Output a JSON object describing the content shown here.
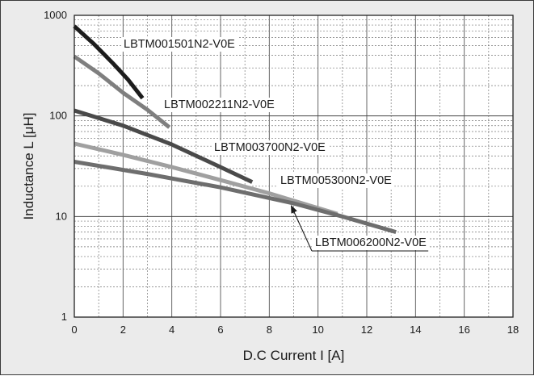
{
  "chart_data": {
    "type": "line",
    "title": "",
    "xlabel": "D.C Current I [A]",
    "ylabel": "Inductance L  [μH]",
    "xlim": [
      0,
      18
    ],
    "ylim": [
      1,
      1000
    ],
    "yscale": "log",
    "grid": true,
    "x_ticks": [
      "0",
      "2",
      "4",
      "6",
      "8",
      "10",
      "12",
      "14",
      "16",
      "18"
    ],
    "y_ticks": [
      {
        "value": 1,
        "label": "1"
      },
      {
        "value": 10,
        "label": "10"
      },
      {
        "value": 100,
        "label": "100"
      },
      {
        "value": 1000,
        "label": "1000"
      }
    ],
    "series": [
      {
        "name": "LBTM001501N2-V0E",
        "color": "#1c1c1c",
        "x": [
          0,
          0.8,
          1.6,
          2.2,
          2.8
        ],
        "y": [
          780,
          520,
          330,
          230,
          150
        ]
      },
      {
        "name": "LBTM002211N2-V0E",
        "color": "#7f7f7f",
        "x": [
          0,
          1,
          2,
          3,
          3.9
        ],
        "y": [
          390,
          265,
          170,
          115,
          77
        ]
      },
      {
        "name": "LBTM003700N2-V0E",
        "color": "#4a4a4a",
        "x": [
          0,
          2,
          4,
          6,
          7.3
        ],
        "y": [
          113,
          80,
          52,
          31,
          22
        ]
      },
      {
        "name": "LBTM005300N2-V0E",
        "color": "#a0a0a0",
        "x": [
          0,
          2,
          4,
          6,
          8,
          10.8
        ],
        "y": [
          53,
          41,
          31,
          23,
          17,
          10.6
        ]
      },
      {
        "name": "LBTM006200N2-V0E",
        "color": "#6e6e6e",
        "x": [
          0,
          3,
          6,
          9,
          11,
          13.2
        ],
        "y": [
          35,
          26.5,
          19.5,
          13.5,
          10,
          7
        ]
      }
    ],
    "annotations": [
      {
        "text": "LBTM001501N2-V0E",
        "series": "LBTM001501N2-V0E"
      },
      {
        "text": "LBTM002211N2-V0E",
        "series": "LBTM002211N2-V0E"
      },
      {
        "text": "LBTM003700N2-V0E",
        "series": "LBTM003700N2-V0E"
      },
      {
        "text": "LBTM005300N2-V0E",
        "series": "LBTM005300N2-V0E"
      },
      {
        "text": "LBTM006200N2-V0E",
        "series": "LBTM006200N2-V0E",
        "arrow": true,
        "arrow_target": {
          "x": 8.9,
          "y": 12.8
        }
      }
    ]
  }
}
